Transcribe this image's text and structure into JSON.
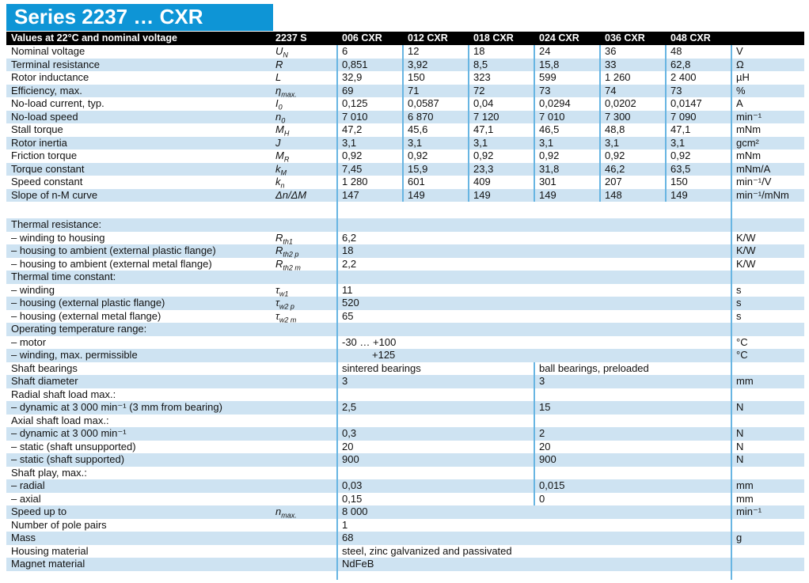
{
  "title": "Series 2237 … CXR",
  "header": {
    "label": "Values at 22°C and nominal voltage",
    "series": "2237 S",
    "variants": [
      "006 CXR",
      "012 CXR",
      "018 CXR",
      "024 CXR",
      "036 CXR",
      "048 CXR"
    ]
  },
  "colors": {
    "title_bar": "#0e95d6",
    "header_bg": "#000000",
    "stripe": "#cee3f2",
    "divider": "#68b5e2",
    "text": "#111111"
  },
  "rows": [
    {
      "type": "cols",
      "label": "Nominal voltage",
      "sym": {
        "b": "U",
        "s": "N"
      },
      "values": [
        "6",
        "12",
        "18",
        "24",
        "36",
        "48"
      ],
      "unit": "V"
    },
    {
      "type": "cols",
      "label": "Terminal resistance",
      "sym": {
        "b": "R",
        "s": ""
      },
      "values": [
        "0,851",
        "3,92",
        "8,5",
        "15,8",
        "33",
        "62,8"
      ],
      "unit": "Ω"
    },
    {
      "type": "cols",
      "label": "Rotor inductance",
      "sym": {
        "b": "L",
        "s": ""
      },
      "values": [
        "32,9",
        "150",
        "323",
        "599",
        "1 260",
        "2 400"
      ],
      "unit": "µH"
    },
    {
      "type": "cols",
      "label": "Efficiency, max.",
      "sym": {
        "b": "η",
        "s": "max."
      },
      "values": [
        "69",
        "71",
        "72",
        "73",
        "74",
        "73"
      ],
      "unit": "%"
    },
    {
      "type": "cols",
      "label": "No-load current, typ.",
      "sym": {
        "b": "I",
        "s": "0"
      },
      "values": [
        "0,125",
        "0,0587",
        "0,04",
        "0,0294",
        "0,0202",
        "0,0147"
      ],
      "unit": "A"
    },
    {
      "type": "cols",
      "label": "No-load speed",
      "sym": {
        "b": "n",
        "s": "0"
      },
      "values": [
        "7 010",
        "6 870",
        "7 120",
        "7 010",
        "7 300",
        "7 090"
      ],
      "unit": "min⁻¹"
    },
    {
      "type": "cols",
      "label": "Stall torque",
      "sym": {
        "b": "M",
        "s": "H"
      },
      "values": [
        "47,2",
        "45,6",
        "47,1",
        "46,5",
        "48,8",
        "47,1"
      ],
      "unit": "mNm"
    },
    {
      "type": "cols",
      "label": "Rotor inertia",
      "sym": {
        "b": "J",
        "s": ""
      },
      "values": [
        "3,1",
        "3,1",
        "3,1",
        "3,1",
        "3,1",
        "3,1"
      ],
      "unit": "gcm²"
    },
    {
      "type": "cols",
      "label": "Friction torque",
      "sym": {
        "b": "M",
        "s": "R"
      },
      "values": [
        "0,92",
        "0,92",
        "0,92",
        "0,92",
        "0,92",
        "0,92"
      ],
      "unit": "mNm"
    },
    {
      "type": "cols",
      "label": "Torque constant",
      "sym": {
        "b": "k",
        "s": "M"
      },
      "values": [
        "7,45",
        "15,9",
        "23,3",
        "31,8",
        "46,2",
        "63,5"
      ],
      "unit": "mNm/A"
    },
    {
      "type": "cols",
      "label": "Speed constant",
      "sym": {
        "b": "k",
        "s": "n"
      },
      "values": [
        "1 280",
        "601",
        "409",
        "301",
        "207",
        "150"
      ],
      "unit": "min⁻¹/V"
    },
    {
      "type": "cols",
      "label": "Slope of n-M curve",
      "sym": {
        "b": "Δn/ΔM",
        "s": ""
      },
      "values": [
        "147",
        "149",
        "149",
        "149",
        "148",
        "149"
      ],
      "unit": "min⁻¹/mNm"
    },
    {
      "type": "gap"
    },
    {
      "type": "head",
      "label": "Thermal resistance:"
    },
    {
      "type": "span",
      "label": "– winding to housing",
      "sym": {
        "b": "R",
        "s": "th1"
      },
      "value": "6,2",
      "unit": "K/W"
    },
    {
      "type": "span",
      "label": "– housing to ambient (external plastic flange)",
      "sym": {
        "b": "R",
        "s": "th2 p"
      },
      "value": "18",
      "unit": "K/W"
    },
    {
      "type": "span",
      "label": "– housing to ambient (external metal flange)",
      "sym": {
        "b": "R",
        "s": "th2 m"
      },
      "value": "2,2",
      "unit": "K/W"
    },
    {
      "type": "head",
      "label": "Thermal time constant:"
    },
    {
      "type": "span",
      "label": "– winding",
      "sym": {
        "b": "τ",
        "s": "w1"
      },
      "value": "11",
      "unit": "s"
    },
    {
      "type": "span",
      "label": "– housing (external plastic flange)",
      "sym": {
        "b": "τ",
        "s": "w2 p"
      },
      "value": "520",
      "unit": "s"
    },
    {
      "type": "span",
      "label": "– housing (external metal flange)",
      "sym": {
        "b": "τ",
        "s": "w2 m"
      },
      "value": "65",
      "unit": "s"
    },
    {
      "type": "head",
      "label": "Operating temperature range:"
    },
    {
      "type": "span",
      "label": "– motor",
      "value": "-30 … +100",
      "unit": "°C"
    },
    {
      "type": "span",
      "label": "– winding, max. permissible",
      "value": "+125",
      "unit": "°C",
      "indent": 38
    },
    {
      "type": "split",
      "label": "Shaft bearings",
      "values": [
        "sintered bearings",
        "ball bearings, preloaded"
      ],
      "unit": ""
    },
    {
      "type": "split",
      "label": "Shaft diameter",
      "values": [
        "3",
        "3"
      ],
      "unit": "mm"
    },
    {
      "type": "head",
      "label": "Radial shaft load max.:"
    },
    {
      "type": "split",
      "label": "– dynamic at 3 000 min⁻¹ (3 mm from bearing)",
      "values": [
        "2,5",
        "15"
      ],
      "unit": "N"
    },
    {
      "type": "head",
      "label": "Axial shaft load max.:"
    },
    {
      "type": "split",
      "label": "– dynamic at 3 000 min⁻¹",
      "values": [
        "0,3",
        "2"
      ],
      "unit": "N"
    },
    {
      "type": "split",
      "label": "– static (shaft unsupported)",
      "values": [
        "20",
        "20"
      ],
      "unit": "N"
    },
    {
      "type": "split",
      "label": "– static (shaft supported)",
      "values": [
        "900",
        "900"
      ],
      "unit": "N"
    },
    {
      "type": "head",
      "label": "Shaft play, max.:"
    },
    {
      "type": "split",
      "label": "– radial",
      "values": [
        "0,03",
        "0,015"
      ],
      "unit": "mm"
    },
    {
      "type": "split",
      "label": "– axial",
      "values": [
        "0,15",
        "0"
      ],
      "unit": "mm"
    },
    {
      "type": "span",
      "label": "Speed up to",
      "sym": {
        "b": "n",
        "s": "max."
      },
      "value": "8 000",
      "unit": "min⁻¹"
    },
    {
      "type": "span",
      "label": "Number of pole pairs",
      "value": "1",
      "unit": ""
    },
    {
      "type": "span",
      "label": "Mass",
      "value": "68",
      "unit": "g"
    },
    {
      "type": "span",
      "label": "Housing material",
      "value": "steel, zinc galvanized and passivated",
      "unit": ""
    },
    {
      "type": "span",
      "label": "Magnet material",
      "value": "NdFeB",
      "unit": ""
    }
  ]
}
